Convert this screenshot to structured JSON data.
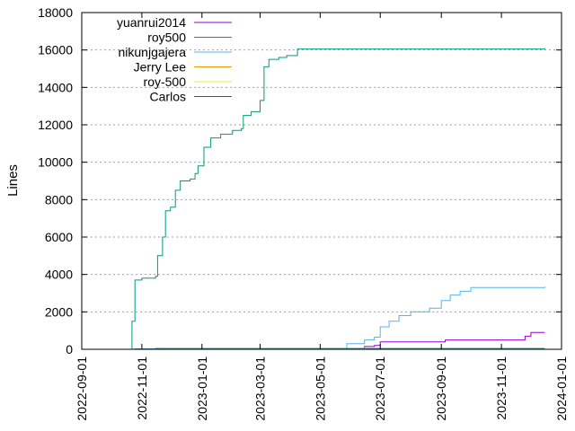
{
  "chart_data": {
    "type": "line",
    "title": "",
    "xlabel": "",
    "ylabel": "Lines",
    "ylim": [
      0,
      18000
    ],
    "xlim": [
      "2022-09-01",
      "2024-01-01"
    ],
    "y_ticks": [
      0,
      2000,
      4000,
      6000,
      8000,
      10000,
      12000,
      14000,
      16000,
      18000
    ],
    "x_ticks": [
      "2022-09-01",
      "2022-11-01",
      "2023-01-01",
      "2023-03-01",
      "2023-05-01",
      "2023-07-01",
      "2023-09-01",
      "2023-11-01",
      "2024-01-01"
    ],
    "grid": true,
    "legend_position": "top-left",
    "series": [
      {
        "name": "yuanrui2014",
        "color": "#9400d3",
        "points": [
          [
            "2023-06-15",
            0
          ],
          [
            "2023-06-15",
            150
          ],
          [
            "2023-06-25",
            200
          ],
          [
            "2023-07-01",
            400
          ],
          [
            "2023-09-01",
            400
          ],
          [
            "2023-09-05",
            500
          ],
          [
            "2023-11-20",
            500
          ],
          [
            "2023-11-25",
            700
          ],
          [
            "2023-12-01",
            900
          ],
          [
            "2023-12-15",
            900
          ]
        ]
      },
      {
        "name": "roy500",
        "color": "#009e73",
        "points": [
          [
            "2022-10-20",
            0
          ],
          [
            "2022-10-22",
            1500
          ],
          [
            "2022-10-25",
            3700
          ],
          [
            "2022-11-01",
            3800
          ],
          [
            "2022-11-15",
            3900
          ],
          [
            "2022-11-17",
            5000
          ],
          [
            "2022-11-22",
            6000
          ],
          [
            "2022-11-25",
            7400
          ],
          [
            "2022-11-30",
            7600
          ],
          [
            "2022-12-05",
            8500
          ],
          [
            "2022-12-10",
            9000
          ],
          [
            "2022-12-20",
            9100
          ],
          [
            "2022-12-25",
            9400
          ],
          [
            "2022-12-28",
            9800
          ],
          [
            "2023-01-03",
            10800
          ],
          [
            "2023-01-10",
            11300
          ],
          [
            "2023-01-20",
            11500
          ],
          [
            "2023-02-01",
            11700
          ],
          [
            "2023-02-10",
            11800
          ],
          [
            "2023-02-12",
            12500
          ],
          [
            "2023-02-20",
            12700
          ],
          [
            "2023-03-01",
            13300
          ],
          [
            "2023-03-05",
            15100
          ],
          [
            "2023-03-10",
            15500
          ],
          [
            "2023-03-20",
            15600
          ],
          [
            "2023-03-28",
            15700
          ],
          [
            "2023-04-08",
            16050
          ],
          [
            "2023-12-15",
            16100
          ]
        ]
      },
      {
        "name": "nikunjgajera",
        "color": "#56b4e9",
        "points": [
          [
            "2023-05-25",
            0
          ],
          [
            "2023-05-28",
            300
          ],
          [
            "2023-06-15",
            500
          ],
          [
            "2023-06-25",
            650
          ],
          [
            "2023-07-01",
            1200
          ],
          [
            "2023-07-10",
            1500
          ],
          [
            "2023-07-20",
            1800
          ],
          [
            "2023-08-01",
            2000
          ],
          [
            "2023-08-20",
            2200
          ],
          [
            "2023-09-01",
            2600
          ],
          [
            "2023-09-10",
            2900
          ],
          [
            "2023-09-20",
            3100
          ],
          [
            "2023-10-01",
            3300
          ],
          [
            "2023-12-15",
            3350
          ]
        ]
      },
      {
        "name": "Jerry Lee",
        "color": "#e69f00",
        "points": [
          [
            "2022-11-10",
            0
          ],
          [
            "2022-11-15",
            60
          ],
          [
            "2023-12-15",
            60
          ]
        ]
      },
      {
        "name": "roy-500",
        "color": "#f0e442",
        "points": [
          [
            "2022-11-15",
            0
          ],
          [
            "2022-11-20",
            30
          ],
          [
            "2023-12-15",
            30
          ]
        ]
      },
      {
        "name": "Carlos",
        "color": "#0072b2",
        "points": [
          [
            "2022-10-20",
            0
          ],
          [
            "2022-10-25",
            20
          ],
          [
            "2023-12-15",
            20
          ]
        ]
      }
    ]
  }
}
